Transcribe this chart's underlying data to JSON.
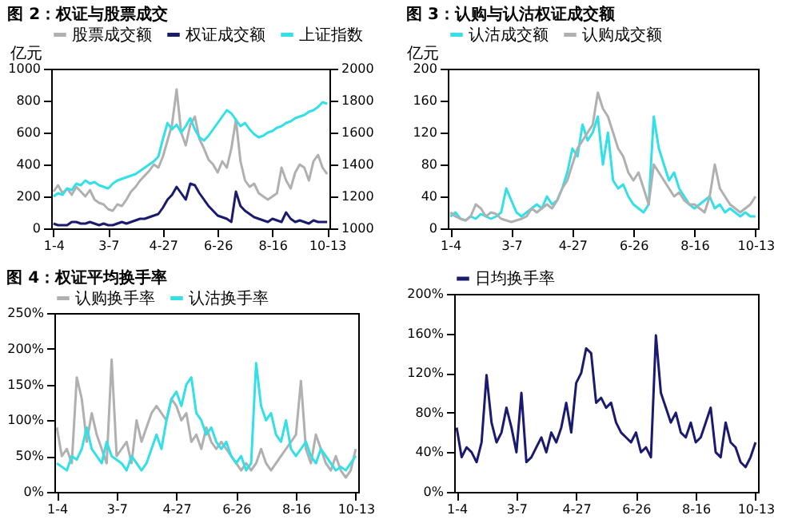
{
  "chart_data": [
    {
      "type": "line",
      "title": "图 2：权证与股票成交",
      "ylabel": "亿元",
      "legend": "top",
      "categories": [
        "1-4",
        null,
        null,
        null,
        null,
        null,
        null,
        null,
        null,
        null,
        null,
        null,
        "3-7",
        null,
        null,
        null,
        null,
        null,
        null,
        null,
        null,
        null,
        null,
        null,
        "4-27",
        null,
        null,
        null,
        null,
        null,
        null,
        null,
        null,
        null,
        null,
        null,
        "6-26",
        null,
        null,
        null,
        null,
        null,
        null,
        null,
        null,
        null,
        null,
        null,
        "8-16",
        null,
        null,
        null,
        null,
        null,
        null,
        null,
        null,
        null,
        null,
        null,
        "10-13"
      ],
      "ylim": [
        0,
        1000
      ],
      "yticks": [
        0,
        200,
        400,
        600,
        800,
        1000
      ],
      "y2lim": [
        1000,
        2000
      ],
      "y2ticks": [
        1000,
        1200,
        1400,
        1600,
        1800,
        2000
      ],
      "series": [
        {
          "name": "股票成交额",
          "color": "#b0b0b0",
          "values": [
            230,
            270,
            220,
            250,
            210,
            260,
            230,
            200,
            240,
            180,
            160,
            150,
            120,
            110,
            150,
            140,
            180,
            230,
            260,
            300,
            330,
            360,
            400,
            380,
            450,
            550,
            650,
            870,
            600,
            520,
            650,
            700,
            560,
            500,
            430,
            400,
            350,
            420,
            380,
            500,
            680,
            420,
            300,
            260,
            280,
            220,
            200,
            180,
            200,
            220,
            380,
            300,
            250,
            350,
            400,
            380,
            300,
            420,
            460,
            380,
            340
          ]
        },
        {
          "name": "权证成交额",
          "color": "#1a1a6e",
          "values": [
            30,
            20,
            20,
            20,
            40,
            40,
            30,
            30,
            40,
            30,
            20,
            30,
            20,
            20,
            30,
            40,
            30,
            40,
            50,
            60,
            60,
            70,
            80,
            90,
            130,
            180,
            210,
            260,
            220,
            180,
            280,
            270,
            220,
            180,
            140,
            110,
            80,
            70,
            60,
            40,
            230,
            140,
            110,
            90,
            70,
            60,
            50,
            40,
            60,
            50,
            40,
            100,
            60,
            40,
            50,
            40,
            30,
            50,
            40,
            40,
            40
          ]
        },
        {
          "name": "上证指数",
          "color": "#33e0e8",
          "axis": "y2",
          "values": [
            1200,
            1220,
            1210,
            1250,
            1240,
            1280,
            1270,
            1300,
            1280,
            1290,
            1270,
            1260,
            1250,
            1280,
            1300,
            1310,
            1320,
            1330,
            1340,
            1360,
            1380,
            1400,
            1420,
            1450,
            1560,
            1660,
            1620,
            1650,
            1600,
            1640,
            1690,
            1620,
            1570,
            1550,
            1580,
            1620,
            1660,
            1700,
            1740,
            1720,
            1680,
            1640,
            1660,
            1620,
            1590,
            1570,
            1580,
            1600,
            1610,
            1630,
            1640,
            1660,
            1670,
            1690,
            1700,
            1710,
            1730,
            1740,
            1760,
            1790,
            1780
          ]
        }
      ]
    },
    {
      "type": "line",
      "title": "图 3：认购与认沽权证成交额",
      "ylabel": "亿元",
      "legend": "top",
      "categories": [
        "1-4",
        null,
        null,
        null,
        null,
        null,
        null,
        null,
        null,
        null,
        null,
        null,
        "3-7",
        null,
        null,
        null,
        null,
        null,
        null,
        null,
        null,
        null,
        null,
        null,
        "4-27",
        null,
        null,
        null,
        null,
        null,
        null,
        null,
        null,
        null,
        null,
        null,
        "6-26",
        null,
        null,
        null,
        null,
        null,
        null,
        null,
        null,
        null,
        null,
        null,
        "8-16",
        null,
        null,
        null,
        null,
        null,
        null,
        null,
        null,
        null,
        null,
        null,
        "10-13"
      ],
      "ylim": [
        0,
        200
      ],
      "yticks": [
        0,
        40,
        80,
        120,
        160,
        200
      ],
      "series": [
        {
          "name": "认沽成交额",
          "color": "#33e0e8",
          "values": [
            15,
            20,
            12,
            10,
            15,
            12,
            18,
            15,
            12,
            15,
            20,
            50,
            35,
            20,
            15,
            20,
            25,
            30,
            25,
            40,
            30,
            35,
            50,
            70,
            100,
            90,
            130,
            110,
            120,
            140,
            80,
            120,
            60,
            50,
            55,
            40,
            30,
            25,
            20,
            30,
            140,
            100,
            80,
            60,
            70,
            50,
            40,
            30,
            25,
            30,
            35,
            40,
            25,
            30,
            20,
            25,
            20,
            15,
            20,
            15,
            15
          ]
        },
        {
          "name": "认购成交额",
          "color": "#b0b0b0",
          "values": [
            20,
            15,
            12,
            10,
            15,
            30,
            25,
            15,
            20,
            18,
            12,
            10,
            8,
            10,
            12,
            15,
            25,
            20,
            25,
            30,
            25,
            35,
            50,
            60,
            80,
            100,
            110,
            120,
            130,
            170,
            150,
            140,
            120,
            100,
            90,
            70,
            60,
            70,
            50,
            30,
            80,
            70,
            60,
            50,
            40,
            45,
            35,
            30,
            30,
            25,
            20,
            40,
            80,
            50,
            40,
            30,
            25,
            20,
            25,
            30,
            40
          ]
        }
      ]
    },
    {
      "type": "line",
      "title": "图 4：权证平均换手率",
      "legend": "top",
      "categories": [
        "1-4",
        null,
        null,
        null,
        null,
        null,
        null,
        null,
        null,
        null,
        null,
        null,
        "3-7",
        null,
        null,
        null,
        null,
        null,
        null,
        null,
        null,
        null,
        null,
        null,
        "4-27",
        null,
        null,
        null,
        null,
        null,
        null,
        null,
        null,
        null,
        null,
        null,
        "6-26",
        null,
        null,
        null,
        null,
        null,
        null,
        null,
        null,
        null,
        null,
        null,
        "8-16",
        null,
        null,
        null,
        null,
        null,
        null,
        null,
        null,
        null,
        null,
        null,
        "10-13"
      ],
      "ylim": [
        0,
        250
      ],
      "yticks": [
        {
          "value": 0,
          "label": "0%"
        },
        {
          "value": 50,
          "label": "50%"
        },
        {
          "value": 100,
          "label": "100%"
        },
        {
          "value": 150,
          "label": "150%"
        },
        {
          "value": 200,
          "label": "200%"
        },
        {
          "value": 250,
          "label": "250%"
        }
      ],
      "series": [
        {
          "name": "认购换手率",
          "color": "#b0b0b0",
          "values": [
            90,
            50,
            60,
            40,
            160,
            130,
            70,
            110,
            80,
            60,
            40,
            185,
            50,
            60,
            70,
            40,
            100,
            70,
            90,
            110,
            120,
            110,
            100,
            130,
            120,
            100,
            110,
            70,
            80,
            60,
            90,
            70,
            60,
            70,
            60,
            50,
            40,
            30,
            40,
            30,
            40,
            60,
            40,
            30,
            40,
            50,
            60,
            70,
            80,
            155,
            60,
            40,
            80,
            60,
            40,
            30,
            50,
            30,
            20,
            30,
            60
          ]
        },
        {
          "name": "认沽换手率",
          "color": "#33e0e8",
          "values": [
            40,
            35,
            30,
            50,
            45,
            60,
            90,
            60,
            50,
            40,
            70,
            50,
            45,
            40,
            30,
            50,
            40,
            30,
            40,
            60,
            80,
            60,
            100,
            130,
            140,
            120,
            150,
            160,
            110,
            100,
            80,
            90,
            70,
            60,
            70,
            50,
            40,
            50,
            30,
            40,
            180,
            120,
            100,
            110,
            80,
            70,
            100,
            60,
            50,
            60,
            70,
            50,
            40,
            60,
            50,
            40,
            30,
            35,
            30,
            40,
            50
          ]
        }
      ]
    },
    {
      "type": "line",
      "legend": "top",
      "categories": [
        "1-4",
        null,
        null,
        null,
        null,
        null,
        null,
        null,
        null,
        null,
        null,
        null,
        "3-7",
        null,
        null,
        null,
        null,
        null,
        null,
        null,
        null,
        null,
        null,
        null,
        "4-27",
        null,
        null,
        null,
        null,
        null,
        null,
        null,
        null,
        null,
        null,
        null,
        "6-26",
        null,
        null,
        null,
        null,
        null,
        null,
        null,
        null,
        null,
        null,
        null,
        "8-16",
        null,
        null,
        null,
        null,
        null,
        null,
        null,
        null,
        null,
        null,
        null,
        "10-13"
      ],
      "ylim": [
        0,
        200
      ],
      "yticks": [
        {
          "value": 0,
          "label": "0%"
        },
        {
          "value": 40,
          "label": "40%"
        },
        {
          "value": 80,
          "label": "80%"
        },
        {
          "value": 120,
          "label": "120%"
        },
        {
          "value": 160,
          "label": "160%"
        },
        {
          "value": 200,
          "label": "200%"
        }
      ],
      "series": [
        {
          "name": "日均换手率",
          "color": "#1a1a6e",
          "values": [
            65,
            35,
            45,
            40,
            30,
            50,
            118,
            70,
            50,
            60,
            85,
            65,
            40,
            100,
            30,
            35,
            45,
            55,
            40,
            60,
            50,
            65,
            90,
            60,
            110,
            120,
            145,
            140,
            90,
            95,
            85,
            90,
            70,
            60,
            55,
            50,
            60,
            40,
            45,
            35,
            158,
            100,
            85,
            70,
            80,
            60,
            55,
            70,
            50,
            55,
            70,
            85,
            40,
            35,
            70,
            50,
            45,
            30,
            25,
            35,
            50
          ]
        }
      ]
    }
  ]
}
